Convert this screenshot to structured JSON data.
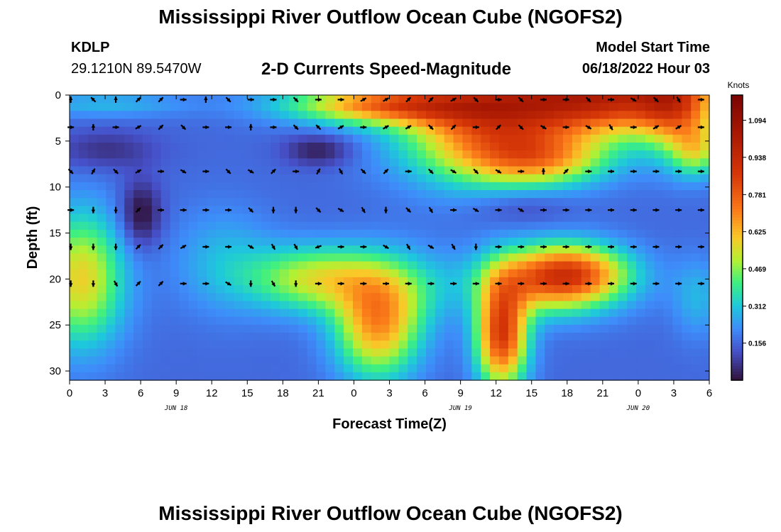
{
  "header": {
    "title": "Mississippi River Outflow Ocean Cube (NGOFS2)",
    "station": "KDLP",
    "coords": "29.1210N  89.5470W",
    "subtitle": "2-D Currents Speed-Magnitude",
    "model_start_label": "Model Start Time",
    "model_start_value": "06/18/2022 Hour 03",
    "footer_title": "Mississippi River Outflow Ocean Cube (NGOFS2)"
  },
  "chart_data": {
    "type": "heatmap",
    "title": "2-D Currents Speed-Magnitude",
    "xlabel": "Forecast Time(Z)",
    "ylabel": "Depth (ft)",
    "x_range_hours": [
      0,
      54
    ],
    "x_tick_labels": [
      "0",
      "3",
      "6",
      "9",
      "12",
      "15",
      "18",
      "21",
      "0",
      "3",
      "6",
      "9",
      "12",
      "15",
      "18",
      "21",
      "0",
      "3",
      "6"
    ],
    "date_labels": [
      {
        "label": "JUN 18",
        "at_tick": 3
      },
      {
        "label": "JUN 19",
        "at_tick": 11
      },
      {
        "label": "JUN 20",
        "at_tick": 16
      }
    ],
    "y_range": [
      0,
      31
    ],
    "y_ticks": [
      0,
      5,
      10,
      15,
      20,
      25,
      30
    ],
    "colorbar": {
      "unit": "Knots",
      "range": [
        0,
        1.2
      ],
      "tick_labels": [
        "1.094",
        "0.938",
        "0.781",
        "0.625",
        "0.469",
        "0.312",
        "0.156"
      ],
      "tick_values": [
        1.094,
        0.938,
        0.781,
        0.625,
        0.469,
        0.312,
        0.156
      ]
    },
    "blobs": [
      {
        "x": 45,
        "y": 0,
        "sx": 7,
        "sy": 3,
        "a": 0.8
      },
      {
        "x": 35,
        "y": 4,
        "sx": 5,
        "sy": 4,
        "a": 0.5
      },
      {
        "x": 27,
        "y": 1,
        "sx": 6,
        "sy": 1.5,
        "a": 0.55
      },
      {
        "x": 51,
        "y": 1,
        "sx": 2,
        "sy": 4,
        "a": 0.3
      },
      {
        "x": 40,
        "y": 7,
        "sx": 4,
        "sy": 2,
        "a": 0.35
      },
      {
        "x": 3,
        "y": 1,
        "sx": 5,
        "sy": 1,
        "a": 0.12
      },
      {
        "x": 1,
        "y": 20,
        "sx": 2.5,
        "sy": 5,
        "a": 0.42
      },
      {
        "x": 21,
        "y": 20,
        "sx": 4,
        "sy": 2.5,
        "a": 0.38
      },
      {
        "x": 26,
        "y": 25,
        "sx": 2.5,
        "sy": 4,
        "a": 0.5
      },
      {
        "x": 29,
        "y": 21,
        "sx": 3,
        "sy": 3,
        "a": 0.12
      },
      {
        "x": 36.5,
        "y": 26,
        "sx": 1.5,
        "sy": 4,
        "a": 0.7
      },
      {
        "x": 41,
        "y": 20,
        "sx": 4,
        "sy": 2.5,
        "a": 0.6
      },
      {
        "x": 43,
        "y": 19,
        "sx": 3,
        "sy": 2,
        "a": 0.2
      },
      {
        "x": 13,
        "y": 18,
        "sx": 3,
        "sy": 4,
        "a": 0.12
      },
      {
        "x": 53,
        "y": 6,
        "sx": 1.5,
        "sy": 2,
        "a": 0.3
      },
      {
        "x": 53,
        "y": 22,
        "sx": 1.5,
        "sy": 3,
        "a": 0.12
      },
      {
        "x": 6,
        "y": 13,
        "sx": 1.2,
        "sy": 2.5,
        "a": -0.18
      },
      {
        "x": 3,
        "y": 6,
        "sx": 3,
        "sy": 1.5,
        "a": -0.1
      },
      {
        "x": 21,
        "y": 6,
        "sx": 2,
        "sy": 1.2,
        "a": -0.14
      },
      {
        "x": 38,
        "y": 12,
        "sx": 3,
        "sy": 1.5,
        "a": -0.08
      }
    ],
    "base_level": 0.16,
    "arrows": [
      {
        "d": 0.5,
        "angs": [
          90,
          135,
          90,
          45,
          45,
          0,
          90,
          315,
          0,
          0,
          315,
          0,
          0,
          30,
          30,
          45,
          45,
          30,
          315,
          0,
          315,
          0,
          0,
          315,
          0,
          330,
          315,
          300,
          0
        ]
      },
      {
        "d": 3.5,
        "angs": [
          0,
          90,
          0,
          30,
          45,
          315,
          0,
          0,
          90,
          0,
          315,
          135,
          30,
          0,
          30,
          30,
          315,
          45,
          0,
          45,
          315,
          330,
          0,
          330,
          300,
          0,
          30,
          30,
          0,
          0
        ]
      },
      {
        "d": 8.3,
        "angs": [
          315,
          60,
          315,
          30,
          0,
          330,
          0,
          315,
          330,
          45,
          0,
          60,
          300,
          315,
          45,
          0,
          315,
          330,
          315,
          330,
          0,
          90,
          45,
          0,
          0,
          0,
          0,
          0,
          0
        ]
      },
      {
        "d": 12.5,
        "angs": [
          0,
          270,
          270,
          45,
          0,
          0,
          0,
          0,
          315,
          270,
          270,
          315,
          330,
          300,
          270,
          315,
          300,
          0,
          330,
          0,
          330,
          0,
          0,
          0,
          0,
          0,
          0,
          0,
          0
        ]
      },
      {
        "d": 16.5,
        "angs": [
          270,
          270,
          270,
          45,
          45,
          30,
          0,
          0,
          330,
          300,
          300,
          200,
          0,
          0,
          330,
          300,
          330,
          300,
          270,
          0,
          0,
          0,
          0,
          0,
          0,
          0,
          0,
          0,
          0
        ]
      },
      {
        "d": 20.5,
        "angs": [
          270,
          270,
          300,
          45,
          45,
          0,
          0,
          330,
          270,
          300,
          270,
          0,
          0,
          0,
          0,
          0,
          0,
          0,
          0,
          0,
          0,
          0,
          0,
          0,
          0,
          0,
          0,
          0,
          0
        ]
      }
    ]
  }
}
